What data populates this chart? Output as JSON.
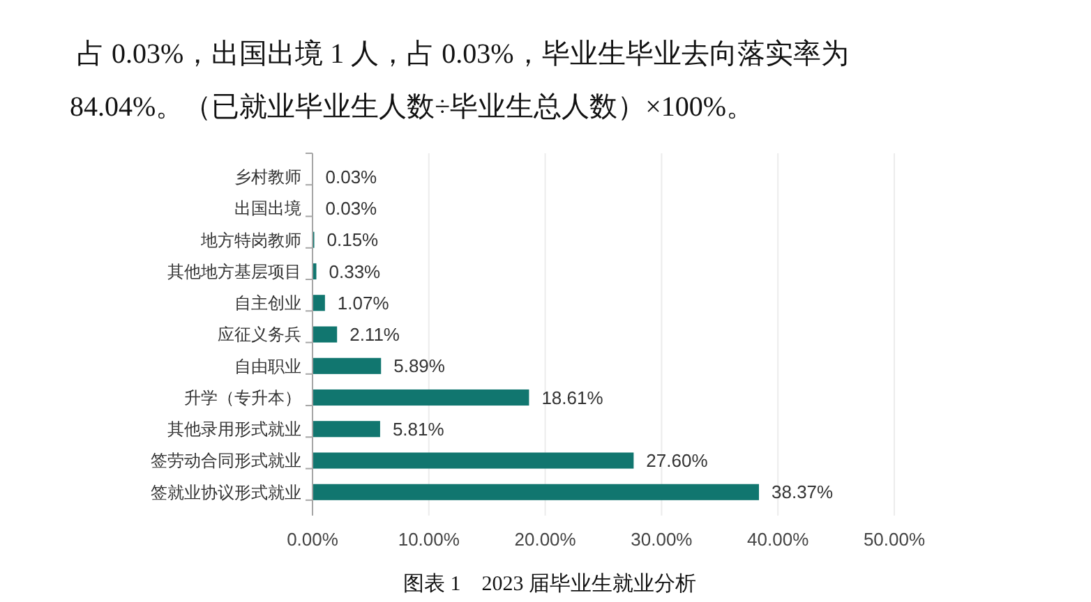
{
  "chart_data": {
    "type": "bar",
    "orientation": "horizontal",
    "title": "图表 1　2023 届毕业生就业分析",
    "annotations": [
      "占 0.03%，出国出境 1 人，占 0.03%，毕业生毕业去向落实率为",
      "84.04%。（已就业毕业生人数÷毕业生总人数）×100%。"
    ],
    "categories": [
      "乡村教师",
      "出国出境",
      "地方特岗教师",
      "其他地方基层项目",
      "自主创业",
      "应征义务兵",
      "自由职业",
      "升学（专升本）",
      "其他录用形式就业",
      "签劳动合同形式就业",
      "签就业协议形式就业"
    ],
    "values": [
      0.03,
      0.03,
      0.15,
      0.33,
      1.07,
      2.11,
      5.89,
      18.61,
      5.81,
      27.6,
      38.37
    ],
    "value_labels": [
      "0.03%",
      "0.03%",
      "0.15%",
      "0.33%",
      "1.07%",
      "2.11%",
      "5.89%",
      "18.61%",
      "5.81%",
      "27.60%",
      "38.37%"
    ],
    "color": "#11766f",
    "xlim": [
      0,
      50
    ],
    "xticks": [
      {
        "value": 0,
        "label": "0.00%"
      },
      {
        "value": 10,
        "label": "10.00%"
      },
      {
        "value": 20,
        "label": "20.00%"
      },
      {
        "value": 30,
        "label": "30.00%"
      },
      {
        "value": 40,
        "label": "40.00%"
      },
      {
        "value": 50,
        "label": "50.00%"
      }
    ],
    "grid": "x"
  }
}
